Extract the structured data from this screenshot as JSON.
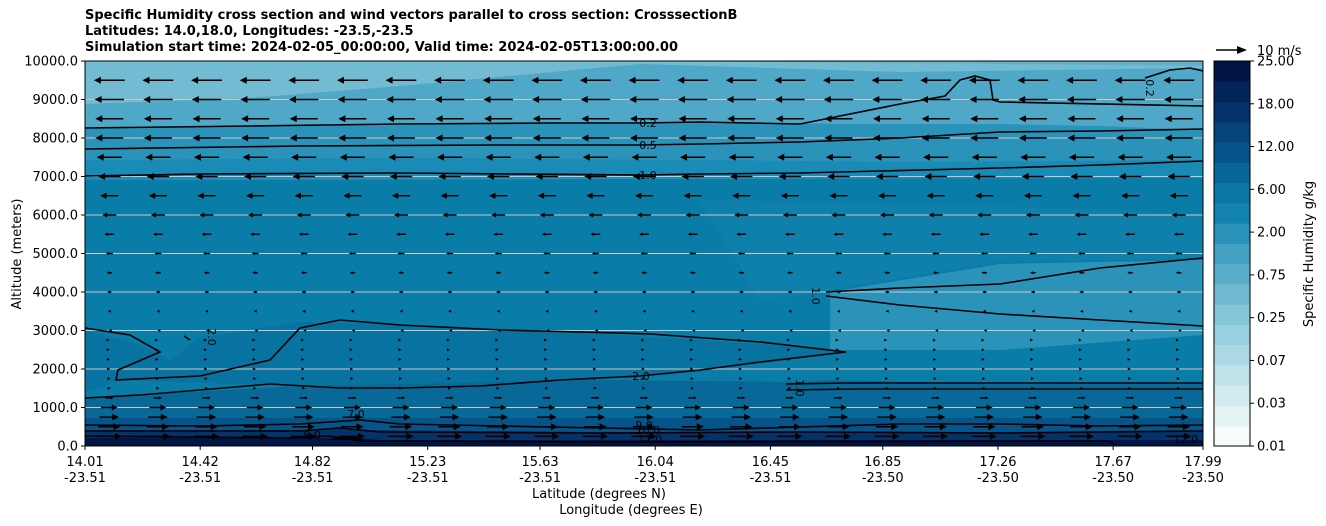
{
  "chart_data": {
    "type": "contour-cross-section",
    "title_lines": [
      "Specific Humidity cross section and wind vectors parallel to cross section: CrosssectionB",
      "Latitudes: 14.0,18.0, Longitudes: -23.5,-23.5",
      "Simulation start time: 2024-02-05_00:00:00, Valid time: 2024-02-05T13:00:00.00"
    ],
    "ylabel": "Altitude (meters)",
    "xlabel_lat": "Latitude (degrees N)",
    "xlabel_lon": "Longitude (degrees E)",
    "ylim": [
      0,
      10000
    ],
    "y_ticks": [
      "0.0",
      "1000.0",
      "2000.0",
      "3000.0",
      "4000.0",
      "5000.0",
      "6000.0",
      "7000.0",
      "8000.0",
      "9000.0",
      "10000.0"
    ],
    "x_range": [
      14.01,
      17.99
    ],
    "x_ticks": [
      {
        "lat": "14.01",
        "lon": "-23.51"
      },
      {
        "lat": "14.42",
        "lon": "-23.51"
      },
      {
        "lat": "14.82",
        "lon": "-23.51"
      },
      {
        "lat": "15.23",
        "lon": "-23.51"
      },
      {
        "lat": "15.63",
        "lon": "-23.51"
      },
      {
        "lat": "16.04",
        "lon": "-23.51"
      },
      {
        "lat": "16.45",
        "lon": "-23.51"
      },
      {
        "lat": "16.85",
        "lon": "-23.50"
      },
      {
        "lat": "17.26",
        "lon": "-23.50"
      },
      {
        "lat": "17.67",
        "lon": "-23.50"
      },
      {
        "lat": "17.99",
        "lon": "-23.50"
      }
    ],
    "colorbar": {
      "label": "Specific Humidity g/kg",
      "tick_labels": [
        "0.01",
        "0.03",
        "0.07",
        "0.25",
        "0.75",
        "2.00",
        "6.00",
        "12.00",
        "18.00",
        "25.00"
      ],
      "levels": [
        0.01,
        0.02,
        0.03,
        0.05,
        0.07,
        0.1,
        0.25,
        0.5,
        0.75,
        1.0,
        2.0,
        4.0,
        6.0,
        9.0,
        12.0,
        15.0,
        18.0,
        21.0,
        25.0
      ],
      "colors": [
        "#f7fcfd",
        "#e5f3f7",
        "#d2ebf1",
        "#bfe2eb",
        "#acd9e5",
        "#98d0df",
        "#85c6d8",
        "#70bad1",
        "#5aadca",
        "#44a0c2",
        "#2a91b8",
        "#1283ad",
        "#0a77a4",
        "#086597",
        "#065489",
        "#05437a",
        "#03336a",
        "#022457",
        "#011446"
      ]
    },
    "contour_labels": [
      "0.2",
      "0.5",
      "1.0",
      "2.0",
      "1.0",
      "2.0",
      "1.0",
      "7.0",
      "8.0",
      "9.0",
      "10.0",
      "11.0",
      "12.0",
      "0.2"
    ],
    "wind_reference": {
      "speed": 10,
      "label": "10 m/s"
    },
    "wind_profile": [
      {
        "z": 250,
        "u": 9
      },
      {
        "z": 500,
        "u": 8
      },
      {
        "z": 750,
        "u": 7
      },
      {
        "z": 1000,
        "u": 6
      },
      {
        "z": 1250,
        "u": 3
      },
      {
        "z": 1500,
        "u": 1
      },
      {
        "z": 1750,
        "u": 0.8
      },
      {
        "z": 2000,
        "u": 0.5
      },
      {
        "z": 2250,
        "u": 0.4
      },
      {
        "z": 2500,
        "u": 0.3
      },
      {
        "z": 2750,
        "u": 0.2
      },
      {
        "z": 3000,
        "u": -0.4
      },
      {
        "z": 3500,
        "u": -1
      },
      {
        "z": 4000,
        "u": -1.5
      },
      {
        "z": 4500,
        "u": -2
      },
      {
        "z": 5000,
        "u": -2.5
      },
      {
        "z": 5500,
        "u": -3.5
      },
      {
        "z": 6000,
        "u": -5
      },
      {
        "z": 6500,
        "u": -6.5
      },
      {
        "z": 7000,
        "u": -8
      },
      {
        "z": 7500,
        "u": -9
      },
      {
        "z": 8000,
        "u": -10
      },
      {
        "z": 8500,
        "u": -10
      },
      {
        "z": 9000,
        "u": -10.5
      },
      {
        "z": 9500,
        "u": -11
      }
    ]
  }
}
